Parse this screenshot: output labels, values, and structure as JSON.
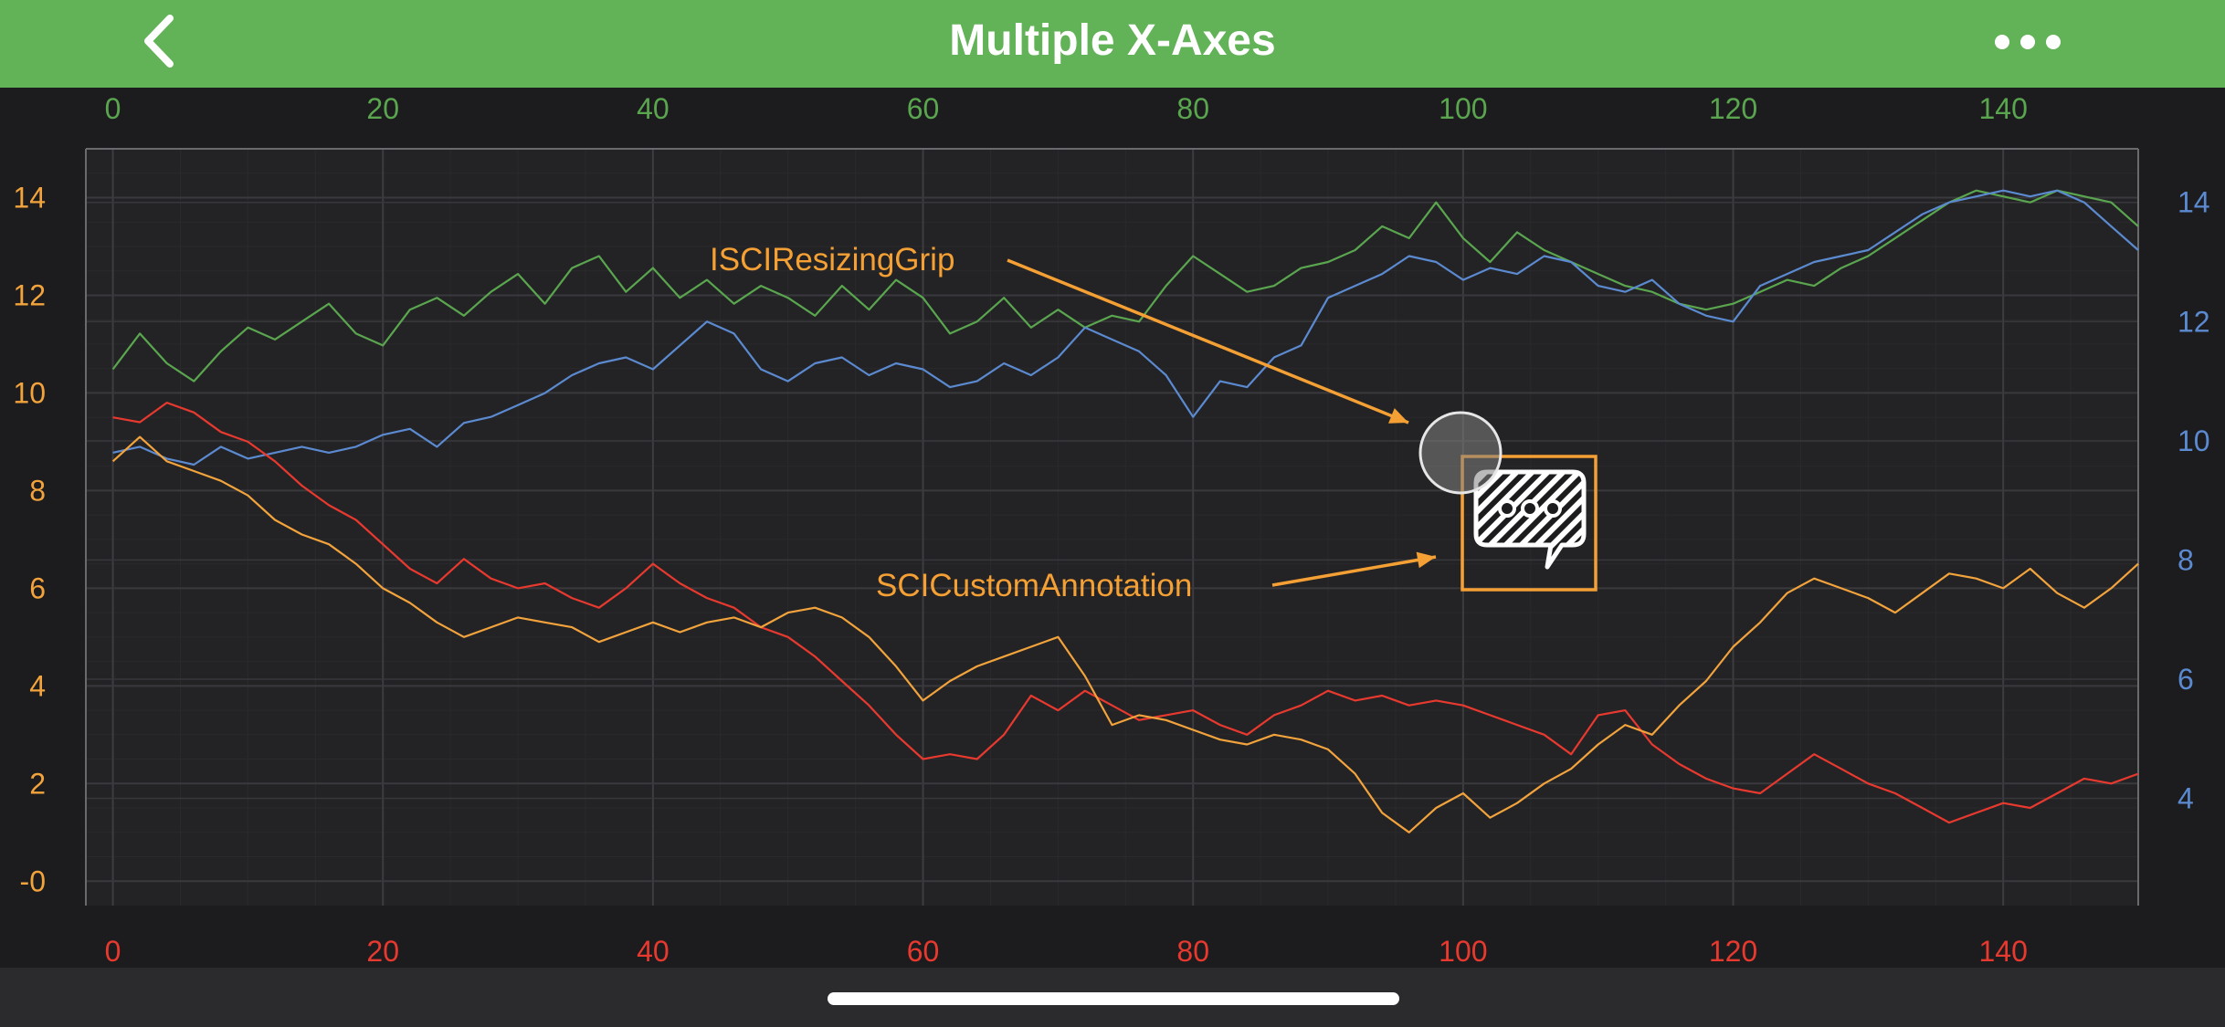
{
  "nav": {
    "title": "Multiple X-Axes",
    "back_icon": "chevron-left-icon",
    "more_icon": "ellipsis-icon"
  },
  "colors": {
    "nav_bg": "#62b257",
    "bg": "#1c1c1e",
    "plot_bg": "#232325",
    "top_axis": "#5aa64f",
    "bottom_axis": "#e8392f",
    "left_axis": "#f2a33c",
    "right_axis": "#5b8ad0",
    "annotation": "#f5a034"
  },
  "chart_data": {
    "type": "line",
    "grid": true,
    "x_axes": [
      {
        "id": "top",
        "position": "top",
        "range": [
          -2,
          150
        ],
        "ticks": [
          0,
          20,
          40,
          60,
          80,
          100,
          120,
          140
        ],
        "color": "#5aa64f"
      },
      {
        "id": "bottom",
        "position": "bottom",
        "range": [
          -2,
          150
        ],
        "ticks": [
          0,
          20,
          40,
          60,
          80,
          100,
          120,
          140
        ],
        "color": "#e8392f"
      }
    ],
    "y_axes": [
      {
        "id": "left",
        "position": "left",
        "range": [
          -0.5,
          15
        ],
        "ticks": [
          0,
          2,
          4,
          6,
          8,
          10,
          12,
          14
        ],
        "tick_labels": [
          "-0",
          "2",
          "4",
          "6",
          "8",
          "10",
          "12",
          "14"
        ],
        "color": "#f2a33c"
      },
      {
        "id": "right",
        "position": "right",
        "range": [
          2.2,
          14.9
        ],
        "ticks": [
          4,
          6,
          8,
          10,
          12,
          14
        ],
        "color": "#5b8ad0"
      }
    ],
    "series": [
      {
        "color": "#5aa64f",
        "x_axis": "top",
        "y_axis": "right",
        "x": [
          0,
          2,
          4,
          6,
          8,
          10,
          12,
          14,
          16,
          18,
          20,
          22,
          24,
          26,
          28,
          30,
          32,
          34,
          36,
          38,
          40,
          42,
          44,
          46,
          48,
          50,
          52,
          54,
          56,
          58,
          60,
          62,
          64,
          66,
          68,
          70,
          72,
          74,
          76,
          78,
          80,
          82,
          84,
          86,
          88,
          90,
          92,
          94,
          96,
          98,
          100,
          102,
          104,
          106,
          108,
          110,
          112,
          114,
          116,
          118,
          120,
          122,
          124,
          126,
          128,
          130,
          132,
          134,
          136,
          138,
          140,
          142,
          144,
          146,
          148,
          150
        ],
        "y": [
          11.2,
          11.8,
          11.3,
          11.0,
          11.5,
          11.9,
          11.7,
          12.0,
          12.3,
          11.8,
          11.6,
          12.2,
          12.4,
          12.1,
          12.5,
          12.8,
          12.3,
          12.9,
          13.1,
          12.5,
          12.9,
          12.4,
          12.7,
          12.3,
          12.6,
          12.4,
          12.1,
          12.6,
          12.2,
          12.7,
          12.4,
          11.8,
          12.0,
          12.4,
          11.9,
          12.2,
          11.9,
          12.1,
          12.0,
          12.6,
          13.1,
          12.8,
          12.5,
          12.6,
          12.9,
          13.0,
          13.2,
          13.6,
          13.4,
          14.0,
          13.4,
          13.0,
          13.5,
          13.2,
          13.0,
          12.8,
          12.6,
          12.5,
          12.3,
          12.2,
          12.3,
          12.5,
          12.7,
          12.6,
          12.9,
          13.1,
          13.4,
          13.7,
          14.0,
          14.2,
          14.1,
          14.0,
          14.2,
          14.1,
          14.0,
          13.6
        ]
      },
      {
        "color": "#5b8ad0",
        "x_axis": "top",
        "y_axis": "right",
        "x": [
          0,
          2,
          4,
          6,
          8,
          10,
          12,
          14,
          16,
          18,
          20,
          22,
          24,
          26,
          28,
          30,
          32,
          34,
          36,
          38,
          40,
          42,
          44,
          46,
          48,
          50,
          52,
          54,
          56,
          58,
          60,
          62,
          64,
          66,
          68,
          70,
          72,
          74,
          76,
          78,
          80,
          82,
          84,
          86,
          88,
          90,
          92,
          94,
          96,
          98,
          100,
          102,
          104,
          106,
          108,
          110,
          112,
          114,
          116,
          118,
          120,
          122,
          124,
          126,
          128,
          130,
          132,
          134,
          136,
          138,
          140,
          142,
          144,
          146,
          148,
          150
        ],
        "y": [
          9.8,
          9.9,
          9.7,
          9.6,
          9.9,
          9.7,
          9.8,
          9.9,
          9.8,
          9.9,
          10.1,
          10.2,
          9.9,
          10.3,
          10.4,
          10.6,
          10.8,
          11.1,
          11.3,
          11.4,
          11.2,
          11.6,
          12.0,
          11.8,
          11.2,
          11.0,
          11.3,
          11.4,
          11.1,
          11.3,
          11.2,
          10.9,
          11.0,
          11.3,
          11.1,
          11.4,
          11.9,
          11.7,
          11.5,
          11.1,
          10.4,
          11.0,
          10.9,
          11.4,
          11.6,
          12.4,
          12.6,
          12.8,
          13.1,
          13.0,
          12.7,
          12.9,
          12.8,
          13.1,
          13.0,
          12.6,
          12.5,
          12.7,
          12.3,
          12.1,
          12.0,
          12.6,
          12.8,
          13.0,
          13.1,
          13.2,
          13.5,
          13.8,
          14.0,
          14.1,
          14.2,
          14.1,
          14.2,
          14.0,
          13.6,
          13.2
        ]
      },
      {
        "color": "#e8392f",
        "x_axis": "bottom",
        "y_axis": "left",
        "x": [
          0,
          2,
          4,
          6,
          8,
          10,
          12,
          14,
          16,
          18,
          20,
          22,
          24,
          26,
          28,
          30,
          32,
          34,
          36,
          38,
          40,
          42,
          44,
          46,
          48,
          50,
          52,
          54,
          56,
          58,
          60,
          62,
          64,
          66,
          68,
          70,
          72,
          74,
          76,
          78,
          80,
          82,
          84,
          86,
          88,
          90,
          92,
          94,
          96,
          98,
          100,
          102,
          104,
          106,
          108,
          110,
          112,
          114,
          116,
          118,
          120,
          122,
          124,
          126,
          128,
          130,
          132,
          134,
          136,
          138,
          140,
          142,
          144,
          146,
          148,
          150
        ],
        "y": [
          9.5,
          9.4,
          9.8,
          9.6,
          9.2,
          9.0,
          8.6,
          8.1,
          7.7,
          7.4,
          6.9,
          6.4,
          6.1,
          6.6,
          6.2,
          6.0,
          6.1,
          5.8,
          5.6,
          6.0,
          6.5,
          6.1,
          5.8,
          5.6,
          5.2,
          5.0,
          4.6,
          4.1,
          3.6,
          3.0,
          2.5,
          2.6,
          2.5,
          3.0,
          3.8,
          3.5,
          3.9,
          3.6,
          3.3,
          3.4,
          3.5,
          3.2,
          3.0,
          3.4,
          3.6,
          3.9,
          3.7,
          3.8,
          3.6,
          3.7,
          3.6,
          3.4,
          3.2,
          3.0,
          2.6,
          3.4,
          3.5,
          2.8,
          2.4,
          2.1,
          1.9,
          1.8,
          2.2,
          2.6,
          2.3,
          2.0,
          1.8,
          1.5,
          1.2,
          1.4,
          1.6,
          1.5,
          1.8,
          2.1,
          2.0,
          2.2
        ]
      },
      {
        "color": "#f2a33c",
        "x_axis": "bottom",
        "y_axis": "left",
        "x": [
          0,
          2,
          4,
          6,
          8,
          10,
          12,
          14,
          16,
          18,
          20,
          22,
          24,
          26,
          28,
          30,
          32,
          34,
          36,
          38,
          40,
          42,
          44,
          46,
          48,
          50,
          52,
          54,
          56,
          58,
          60,
          62,
          64,
          66,
          68,
          70,
          72,
          74,
          76,
          78,
          80,
          82,
          84,
          86,
          88,
          90,
          92,
          94,
          96,
          98,
          100,
          102,
          104,
          106,
          108,
          110,
          112,
          114,
          116,
          118,
          120,
          122,
          124,
          126,
          128,
          130,
          132,
          134,
          136,
          138,
          140,
          142,
          144,
          146,
          148,
          150
        ],
        "y": [
          8.6,
          9.1,
          8.6,
          8.4,
          8.2,
          7.9,
          7.4,
          7.1,
          6.9,
          6.5,
          6.0,
          5.7,
          5.3,
          5.0,
          5.2,
          5.4,
          5.3,
          5.2,
          4.9,
          5.1,
          5.3,
          5.1,
          5.3,
          5.4,
          5.2,
          5.5,
          5.6,
          5.4,
          5.0,
          4.4,
          3.7,
          4.1,
          4.4,
          4.6,
          4.8,
          5.0,
          4.2,
          3.2,
          3.4,
          3.3,
          3.1,
          2.9,
          2.8,
          3.0,
          2.9,
          2.7,
          2.2,
          1.4,
          1.0,
          1.5,
          1.8,
          1.3,
          1.6,
          2.0,
          2.3,
          2.8,
          3.2,
          3.0,
          3.6,
          4.1,
          4.8,
          5.3,
          5.9,
          6.2,
          6.0,
          5.8,
          5.5,
          5.9,
          6.3,
          6.2,
          6.0,
          6.4,
          5.9,
          5.6,
          6.0,
          6.5
        ]
      }
    ],
    "annotations": [
      {
        "type": "text",
        "text": "ISCIResizingGrip"
      },
      {
        "type": "text",
        "text": "SCICustomAnnotation"
      }
    ]
  }
}
